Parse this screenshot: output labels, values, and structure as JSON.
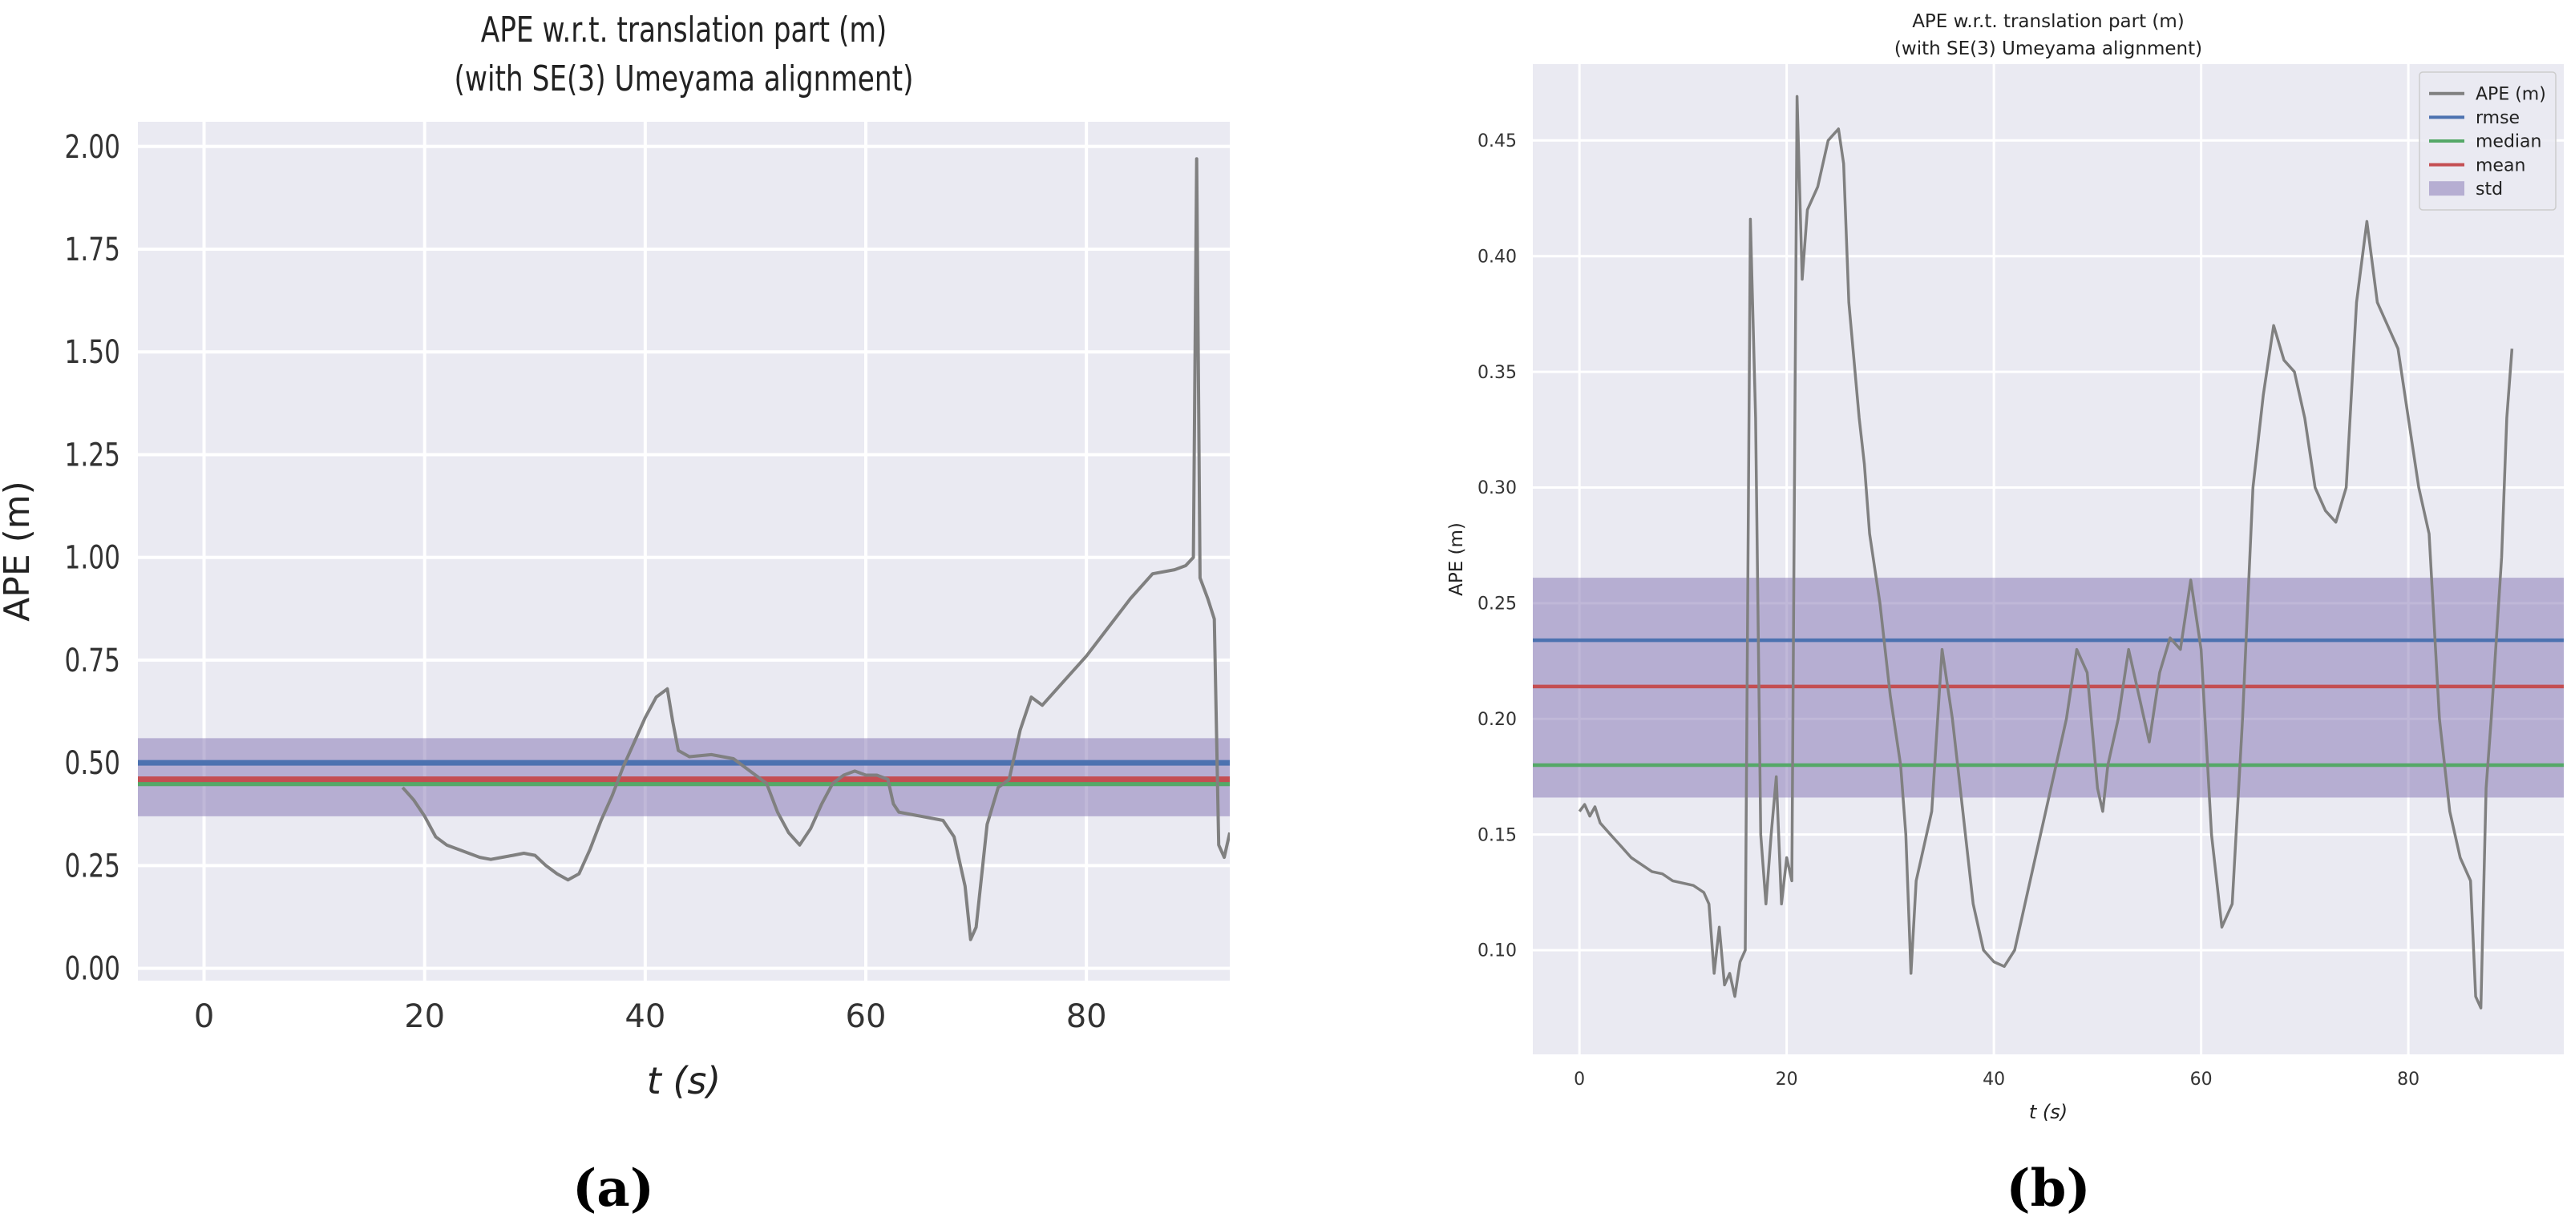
{
  "chart_data": [
    {
      "type": "line",
      "panel_label": "(a)",
      "title": "APE w.r.t. translation part (m)",
      "subtitle": "(with SE(3) Umeyama alignment)",
      "xlabel": "t (s)",
      "ylabel": "APE (m)",
      "xlim": [
        -6,
        93
      ],
      "ylim": [
        -0.03,
        2.06
      ],
      "xticks": [
        0,
        20,
        40,
        60,
        80
      ],
      "yticks": [
        0.0,
        0.25,
        0.5,
        0.75,
        1.0,
        1.25,
        1.5,
        1.75,
        2.0
      ],
      "ytick_labels": [
        "0.00",
        "0.25",
        "0.50",
        "0.75",
        "1.00",
        "1.25",
        "1.50",
        "1.75",
        "2.00"
      ],
      "grid": true,
      "legend": null,
      "stats": {
        "rmse": 0.5,
        "median": 0.45,
        "mean": 0.46,
        "std_band": [
          0.37,
          0.56
        ]
      },
      "colors": {
        "ape": "#808080",
        "rmse": "#4c72b0",
        "median": "#55a868",
        "mean": "#c44e52",
        "std": "#8172b2",
        "background": "#eaeaf2"
      },
      "series": [
        {
          "name": "APE (m)",
          "points": [
            [
              18,
              0.44
            ],
            [
              19,
              0.41
            ],
            [
              20,
              0.37
            ],
            [
              21,
              0.32
            ],
            [
              22,
              0.3
            ],
            [
              23,
              0.29
            ],
            [
              24,
              0.28
            ],
            [
              25,
              0.27
            ],
            [
              26,
              0.265
            ],
            [
              27,
              0.27
            ],
            [
              28,
              0.275
            ],
            [
              29,
              0.28
            ],
            [
              30,
              0.275
            ],
            [
              31,
              0.25
            ],
            [
              32,
              0.23
            ],
            [
              33,
              0.215
            ],
            [
              34,
              0.23
            ],
            [
              35,
              0.29
            ],
            [
              36,
              0.36
            ],
            [
              37,
              0.42
            ],
            [
              38,
              0.49
            ],
            [
              39,
              0.55
            ],
            [
              40,
              0.61
            ],
            [
              41,
              0.66
            ],
            [
              42,
              0.68
            ],
            [
              42.5,
              0.6
            ],
            [
              43,
              0.53
            ],
            [
              44,
              0.515
            ],
            [
              46,
              0.52
            ],
            [
              48,
              0.51
            ],
            [
              50,
              0.47
            ],
            [
              51,
              0.45
            ],
            [
              52,
              0.38
            ],
            [
              53,
              0.33
            ],
            [
              54,
              0.3
            ],
            [
              55,
              0.34
            ],
            [
              56,
              0.4
            ],
            [
              57,
              0.45
            ],
            [
              58,
              0.47
            ],
            [
              59,
              0.48
            ],
            [
              60,
              0.47
            ],
            [
              61,
              0.47
            ],
            [
              62,
              0.46
            ],
            [
              62.5,
              0.4
            ],
            [
              63,
              0.38
            ],
            [
              65,
              0.37
            ],
            [
              67,
              0.36
            ],
            [
              68,
              0.32
            ],
            [
              69,
              0.2
            ],
            [
              69.5,
              0.07
            ],
            [
              70,
              0.1
            ],
            [
              71,
              0.35
            ],
            [
              72,
              0.44
            ],
            [
              73,
              0.46
            ],
            [
              74,
              0.58
            ],
            [
              75,
              0.66
            ],
            [
              76,
              0.64
            ],
            [
              78,
              0.7
            ],
            [
              80,
              0.76
            ],
            [
              82,
              0.83
            ],
            [
              84,
              0.9
            ],
            [
              86,
              0.96
            ],
            [
              88,
              0.97
            ],
            [
              89,
              0.98
            ],
            [
              89.7,
              1.0
            ],
            [
              90,
              1.97
            ],
            [
              90.3,
              0.95
            ],
            [
              91,
              0.9
            ],
            [
              91.6,
              0.85
            ],
            [
              92,
              0.3
            ],
            [
              92.5,
              0.27
            ],
            [
              93,
              0.33
            ]
          ]
        }
      ]
    },
    {
      "type": "line",
      "panel_label": "(b)",
      "title": "APE w.r.t. translation part (m)",
      "subtitle": "(with SE(3) Umeyama alignment)",
      "xlabel": "t (s)",
      "ylabel": "APE (m)",
      "xlim": [
        -4.5,
        95
      ],
      "ylim": [
        0.055,
        0.483
      ],
      "xticks": [
        0,
        20,
        40,
        60,
        80
      ],
      "yticks": [
        0.1,
        0.15,
        0.2,
        0.25,
        0.3,
        0.35,
        0.4,
        0.45
      ],
      "ytick_labels": [
        "0.10",
        "0.15",
        "0.20",
        "0.25",
        "0.30",
        "0.35",
        "0.40",
        "0.45"
      ],
      "grid": true,
      "legend": {
        "placement": "top-right",
        "entries": [
          "APE (m)",
          "rmse",
          "median",
          "mean",
          "std"
        ]
      },
      "stats": {
        "rmse": 0.234,
        "median": 0.18,
        "mean": 0.214,
        "std_band": [
          0.166,
          0.261
        ]
      },
      "colors": {
        "ape": "#808080",
        "rmse": "#4c72b0",
        "median": "#55a868",
        "mean": "#c44e52",
        "std": "#8172b2",
        "background": "#eaeaf2"
      },
      "series": [
        {
          "name": "APE (m)",
          "points": [
            [
              0,
              0.16
            ],
            [
              0.5,
              0.163
            ],
            [
              1,
              0.158
            ],
            [
              1.5,
              0.162
            ],
            [
              2,
              0.155
            ],
            [
              3,
              0.15
            ],
            [
              4,
              0.145
            ],
            [
              5,
              0.14
            ],
            [
              6,
              0.137
            ],
            [
              7,
              0.134
            ],
            [
              8,
              0.133
            ],
            [
              9,
              0.13
            ],
            [
              10,
              0.129
            ],
            [
              11,
              0.128
            ],
            [
              12,
              0.125
            ],
            [
              12.5,
              0.12
            ],
            [
              13,
              0.09
            ],
            [
              13.5,
              0.11
            ],
            [
              14,
              0.085
            ],
            [
              14.5,
              0.09
            ],
            [
              15,
              0.08
            ],
            [
              15.5,
              0.095
            ],
            [
              16,
              0.1
            ],
            [
              16.5,
              0.416
            ],
            [
              17,
              0.33
            ],
            [
              17.5,
              0.15
            ],
            [
              18,
              0.12
            ],
            [
              18.5,
              0.15
            ],
            [
              19,
              0.175
            ],
            [
              19.5,
              0.12
            ],
            [
              20,
              0.14
            ],
            [
              20.5,
              0.13
            ],
            [
              21,
              0.469
            ],
            [
              21.5,
              0.39
            ],
            [
              22,
              0.42
            ],
            [
              23,
              0.43
            ],
            [
              24,
              0.45
            ],
            [
              25,
              0.455
            ],
            [
              25.5,
              0.44
            ],
            [
              26,
              0.38
            ],
            [
              27,
              0.33
            ],
            [
              27.5,
              0.31
            ],
            [
              28,
              0.28
            ],
            [
              29,
              0.25
            ],
            [
              30,
              0.21
            ],
            [
              31,
              0.18
            ],
            [
              31.5,
              0.15
            ],
            [
              32,
              0.09
            ],
            [
              32.5,
              0.13
            ],
            [
              33,
              0.14
            ],
            [
              34,
              0.16
            ],
            [
              35,
              0.23
            ],
            [
              36,
              0.2
            ],
            [
              37,
              0.16
            ],
            [
              38,
              0.12
            ],
            [
              39,
              0.1
            ],
            [
              40,
              0.095
            ],
            [
              41,
              0.093
            ],
            [
              42,
              0.1
            ],
            [
              43,
              0.12
            ],
            [
              44,
              0.14
            ],
            [
              45,
              0.16
            ],
            [
              46,
              0.18
            ],
            [
              47,
              0.2
            ],
            [
              48,
              0.23
            ],
            [
              49,
              0.22
            ],
            [
              50,
              0.17
            ],
            [
              50.5,
              0.16
            ],
            [
              51,
              0.18
            ],
            [
              52,
              0.2
            ],
            [
              53,
              0.23
            ],
            [
              54,
              0.21
            ],
            [
              55,
              0.19
            ],
            [
              56,
              0.22
            ],
            [
              57,
              0.235
            ],
            [
              58,
              0.23
            ],
            [
              59,
              0.26
            ],
            [
              60,
              0.23
            ],
            [
              61,
              0.15
            ],
            [
              62,
              0.11
            ],
            [
              63,
              0.12
            ],
            [
              64,
              0.2
            ],
            [
              65,
              0.3
            ],
            [
              66,
              0.34
            ],
            [
              67,
              0.37
            ],
            [
              68,
              0.355
            ],
            [
              69,
              0.35
            ],
            [
              70,
              0.33
            ],
            [
              71,
              0.3
            ],
            [
              72,
              0.29
            ],
            [
              73,
              0.285
            ],
            [
              74,
              0.3
            ],
            [
              75,
              0.38
            ],
            [
              76,
              0.415
            ],
            [
              77,
              0.38
            ],
            [
              78,
              0.37
            ],
            [
              79,
              0.36
            ],
            [
              80,
              0.33
            ],
            [
              81,
              0.3
            ],
            [
              82,
              0.28
            ],
            [
              83,
              0.2
            ],
            [
              84,
              0.16
            ],
            [
              85,
              0.14
            ],
            [
              86,
              0.13
            ],
            [
              86.5,
              0.08
            ],
            [
              87,
              0.075
            ],
            [
              87.5,
              0.17
            ],
            [
              88,
              0.2
            ],
            [
              89,
              0.27
            ],
            [
              89.5,
              0.33
            ],
            [
              90,
              0.36
            ]
          ]
        },
        {
          "name": "rmse",
          "values": [
            0.234
          ]
        },
        {
          "name": "median",
          "values": [
            0.18
          ]
        },
        {
          "name": "mean",
          "values": [
            0.214
          ]
        },
        {
          "name": "std",
          "values": [
            0.166,
            0.261
          ]
        }
      ]
    }
  ]
}
